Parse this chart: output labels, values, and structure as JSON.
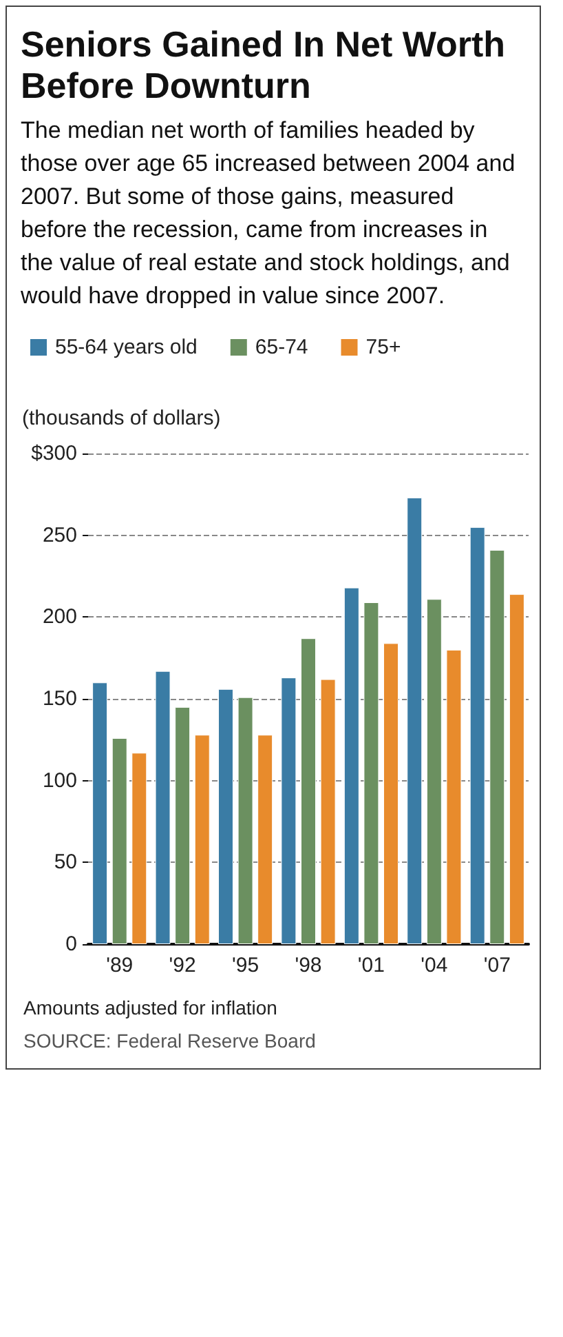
{
  "chart_data": {
    "type": "bar",
    "title": "Seniors Gained In Net Worth Before Downturn",
    "subtitle": "The median net worth of families headed by those over age 65 increased between 2004 and 2007. But some of those gains, measured before the recession, came from increases in the value of real estate and stock holdings, and would have dropped in value since 2007.",
    "ylabel": "(thousands of dollars)",
    "categories": [
      "'89",
      "'92",
      "'95",
      "'98",
      "'01",
      "'04",
      "'07"
    ],
    "series": [
      {
        "name": "55-64 years old",
        "color": "#3a7ca5",
        "values": [
          160,
          167,
          156,
          163,
          218,
          273,
          255
        ]
      },
      {
        "name": "65-74",
        "color": "#6b9060",
        "values": [
          126,
          145,
          151,
          187,
          209,
          211,
          241
        ]
      },
      {
        "name": "75+",
        "color": "#e88b2c",
        "values": [
          117,
          128,
          128,
          162,
          184,
          180,
          214
        ]
      }
    ],
    "ylim": [
      0,
      300
    ],
    "yticks": [
      0,
      50,
      100,
      150,
      200,
      250,
      {
        "value": 300,
        "label": "$300"
      }
    ],
    "grid": "y",
    "legend": "top left",
    "annotations": [
      "Amounts adjusted for inflation",
      "SOURCE:  Federal Reserve Board"
    ]
  }
}
